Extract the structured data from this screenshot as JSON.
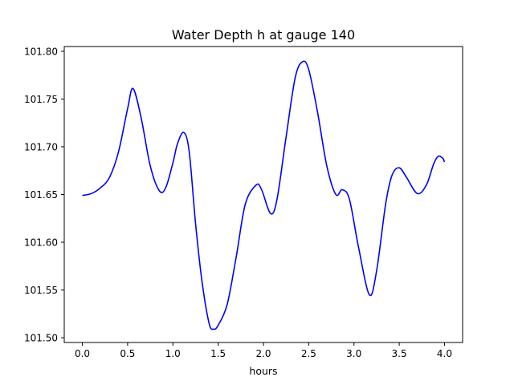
{
  "chart_data": {
    "type": "line",
    "title": "Water Depth h at gauge 140",
    "xlabel": "hours",
    "ylabel": "",
    "xlim": [
      -0.2,
      4.2
    ],
    "ylim": [
      101.495,
      101.805
    ],
    "x_ticks": [
      0.0,
      0.5,
      1.0,
      1.5,
      2.0,
      2.5,
      3.0,
      3.5,
      4.0
    ],
    "x_tick_labels": [
      "0.0",
      "0.5",
      "1.0",
      "1.5",
      "2.0",
      "2.5",
      "3.0",
      "3.5",
      "4.0"
    ],
    "y_ticks": [
      101.5,
      101.55,
      101.6,
      101.65,
      101.7,
      101.75,
      101.8
    ],
    "y_tick_labels": [
      "101.50",
      "101.55",
      "101.60",
      "101.65",
      "101.70",
      "101.75",
      "101.80"
    ],
    "grid": false,
    "series": [
      {
        "color": "#0000ff",
        "x": [
          0.0,
          0.1,
          0.2,
          0.3,
          0.4,
          0.5,
          0.56,
          0.65,
          0.75,
          0.85,
          0.92,
          1.0,
          1.05,
          1.12,
          1.18,
          1.25,
          1.32,
          1.4,
          1.45,
          1.5,
          1.6,
          1.7,
          1.8,
          1.92,
          1.98,
          2.08,
          2.15,
          2.25,
          2.35,
          2.43,
          2.5,
          2.6,
          2.7,
          2.8,
          2.87,
          2.95,
          3.05,
          3.17,
          3.25,
          3.35,
          3.42,
          3.5,
          3.58,
          3.7,
          3.8,
          3.88,
          3.93,
          3.98,
          4.0
        ],
        "y": [
          101.649,
          101.651,
          101.657,
          101.668,
          101.695,
          101.74,
          101.761,
          101.73,
          101.68,
          101.654,
          101.657,
          101.683,
          101.703,
          101.715,
          101.695,
          101.62,
          101.56,
          101.515,
          101.509,
          101.513,
          101.535,
          101.585,
          101.64,
          101.66,
          101.655,
          101.63,
          101.645,
          101.71,
          101.772,
          101.789,
          101.781,
          101.735,
          101.68,
          101.65,
          101.655,
          101.645,
          101.595,
          101.545,
          101.57,
          101.64,
          101.67,
          101.678,
          101.668,
          101.651,
          101.66,
          101.682,
          101.69,
          101.688,
          101.684
        ]
      }
    ]
  }
}
